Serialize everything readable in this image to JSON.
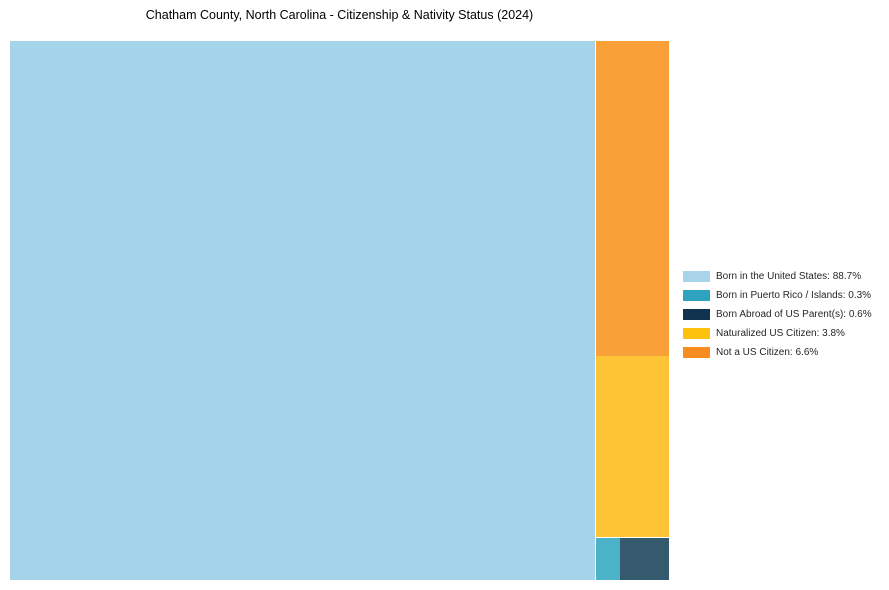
{
  "title": "Chatham County, North Carolina - Citizenship & Nativity Status (2024)",
  "chart_data": {
    "type": "treemap",
    "title": "Chatham County, North Carolina - Citizenship & Nativity Status (2024)",
    "unit": "%",
    "total": 100,
    "legend_position": "center right",
    "series": [
      {
        "name": "Born in the United States",
        "value": 88.7,
        "tile_color": "#A5D4EA",
        "legend_color": "#A8D3E8"
      },
      {
        "name": "Born in Puerto Rico / Islands",
        "value": 0.3,
        "tile_color": "#4BB2C8",
        "legend_color": "#2EA3C0"
      },
      {
        "name": "Born Abroad of US Parent(s)",
        "value": 0.6,
        "tile_color": "#35596D",
        "legend_color": "#113350"
      },
      {
        "name": "Naturalized US Citizen",
        "value": 3.8,
        "tile_color": "#FEC435",
        "legend_color": "#FEC20D"
      },
      {
        "name": "Not a US Citizen",
        "value": 6.6,
        "tile_color": "#F9A039",
        "legend_color": "#F68D1E"
      }
    ]
  },
  "legend": {
    "items": [
      {
        "label": "Born in the United States: 88.7%"
      },
      {
        "label": "Born in Puerto Rico / Islands: 0.3%"
      },
      {
        "label": "Born Abroad of US Parent(s): 0.6%"
      },
      {
        "label": "Naturalized US Citizen: 3.8%"
      },
      {
        "label": "Not a US Citizen: 6.6%"
      }
    ]
  }
}
